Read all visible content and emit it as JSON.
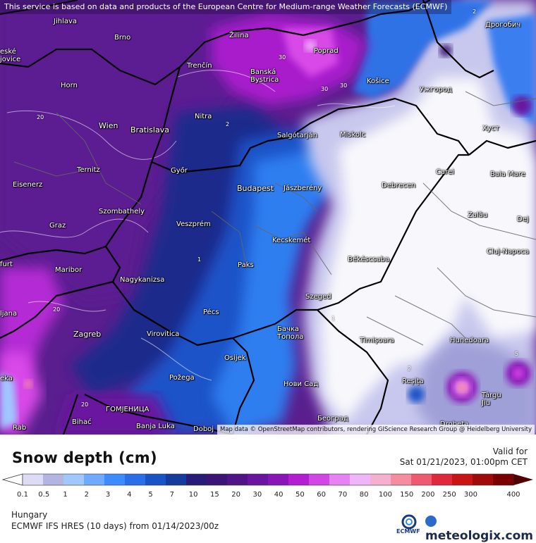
{
  "banner": "This service is based on data and products of the European Centre for Medium-range Weather Forecasts (ECMWF)",
  "attribution": "Map data © OpenStreetMap contributors, rendering GIScience Research Group @ Heidelberg University",
  "cities": [
    {
      "name": "Jihlava"
    },
    {
      "name": "Brno"
    },
    {
      "name": "Žilina"
    },
    {
      "name": "Poprad"
    },
    {
      "name": "Дрогобич"
    },
    {
      "name": "eské\njovice"
    },
    {
      "name": "Trenčín"
    },
    {
      "name": "Banská\nBystrica"
    },
    {
      "name": "Košice"
    },
    {
      "name": "Ужгород"
    },
    {
      "name": "Horn"
    },
    {
      "name": "Nitra"
    },
    {
      "name": "Хуст"
    },
    {
      "name": "Wien"
    },
    {
      "name": "Bratislava"
    },
    {
      "name": "Salgótarján"
    },
    {
      "name": "Miskolc"
    },
    {
      "name": "Ternitz"
    },
    {
      "name": "Győr"
    },
    {
      "name": "Carei"
    },
    {
      "name": "Baia Mare"
    },
    {
      "name": "Eisenerz"
    },
    {
      "name": "Budapest"
    },
    {
      "name": "Jászberény"
    },
    {
      "name": "Debrecen"
    },
    {
      "name": "Szombathely"
    },
    {
      "name": "Zalău"
    },
    {
      "name": "Graz"
    },
    {
      "name": "Veszprém"
    },
    {
      "name": "Dej"
    },
    {
      "name": "Kecskemét"
    },
    {
      "name": "Cluj-Napoca"
    },
    {
      "name": "furt"
    },
    {
      "name": "Maribor"
    },
    {
      "name": "Paks"
    },
    {
      "name": "Békéscsaba"
    },
    {
      "name": "Nagykanizsa"
    },
    {
      "name": "Szeged"
    },
    {
      "name": "ljana"
    },
    {
      "name": "Pécs"
    },
    {
      "name": "Zagreb"
    },
    {
      "name": "Бачка\nТопола"
    },
    {
      "name": "Virovitica"
    },
    {
      "name": "Timișoara"
    },
    {
      "name": "Hunedoara"
    },
    {
      "name": "Osijek"
    },
    {
      "name": "eka"
    },
    {
      "name": "Požega"
    },
    {
      "name": "Reșița"
    },
    {
      "name": "Нови Сад"
    },
    {
      "name": "ГОМЈЕНИЦА"
    },
    {
      "name": "Târgu\nJiu"
    },
    {
      "name": "Bihać"
    },
    {
      "name": "Banja Luka"
    },
    {
      "name": "Doboj"
    },
    {
      "name": "Београд"
    },
    {
      "name": "Rab"
    },
    {
      "name": "Drobeta"
    }
  ],
  "contour_labels": [
    "30",
    "30",
    "2",
    "30",
    "2",
    "20",
    "20",
    "1",
    "1",
    "2",
    "5",
    "20"
  ],
  "legend": {
    "title": "Snow depth (cm)",
    "valid_label": "Valid for",
    "valid_date": "Sat 01/21/2023, 01:00pm CET",
    "ticks": [
      "0.1",
      "0.5",
      "1",
      "2",
      "3",
      "4",
      "5",
      "7",
      "10",
      "15",
      "20",
      "30",
      "40",
      "50",
      "60",
      "70",
      "80",
      "100",
      "150",
      "200",
      "250",
      "300",
      "400"
    ],
    "colors": [
      "#dcdcf6",
      "#b4b4e0",
      "#a0c8ff",
      "#6eaaff",
      "#3c8cff",
      "#2a6ee8",
      "#1a52c8",
      "#143c9c",
      "#281c78",
      "#3c1478",
      "#501488",
      "#6a14a0",
      "#8a14b8",
      "#b41ed2",
      "#d246e6",
      "#e682f2",
      "#f0b4f8",
      "#f5b0d0",
      "#f58ca0",
      "#f05a6e",
      "#e0283c",
      "#c81414",
      "#a00a0a",
      "#7a0000",
      "#500000"
    ]
  },
  "footer": {
    "region": "Hungary",
    "model": "ECMWF IFS HRES (10 days) from 01/14/2023/00z",
    "ecmwf": "ECMWF",
    "brand": "meteologix.com"
  }
}
